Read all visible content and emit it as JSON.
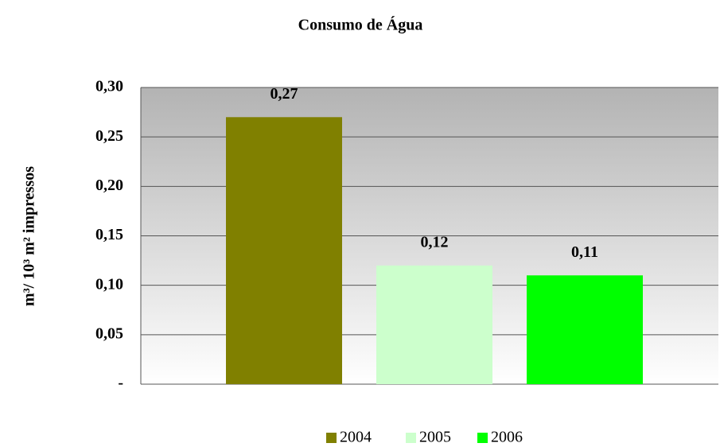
{
  "chart_data": {
    "type": "bar",
    "title": "Consumo de Água",
    "ylabel": "m³/ 10³ m² impressos",
    "categories": [
      null
    ],
    "series": [
      {
        "name": "2004",
        "color": "#808000",
        "values": [
          0.27
        ],
        "value_labels": [
          "0,27"
        ]
      },
      {
        "name": "2005",
        "color": "#ccffcc",
        "values": [
          0.12
        ],
        "value_labels": [
          "0,12"
        ]
      },
      {
        "name": "2006",
        "color": "#00ff00",
        "values": [
          0.11
        ],
        "value_labels": [
          "0,11"
        ]
      }
    ],
    "ylim": [
      0,
      0.3
    ],
    "yticks": [
      {
        "value": 0,
        "label": "-"
      },
      {
        "value": 0.05,
        "label": "0,05"
      },
      {
        "value": 0.1,
        "label": "0,10"
      },
      {
        "value": 0.15,
        "label": "0,15"
      },
      {
        "value": 0.2,
        "label": "0,20"
      },
      {
        "value": 0.25,
        "label": "0,25"
      },
      {
        "value": 0.3,
        "label": "0,30"
      }
    ],
    "grid": true,
    "legend": "bottom"
  }
}
